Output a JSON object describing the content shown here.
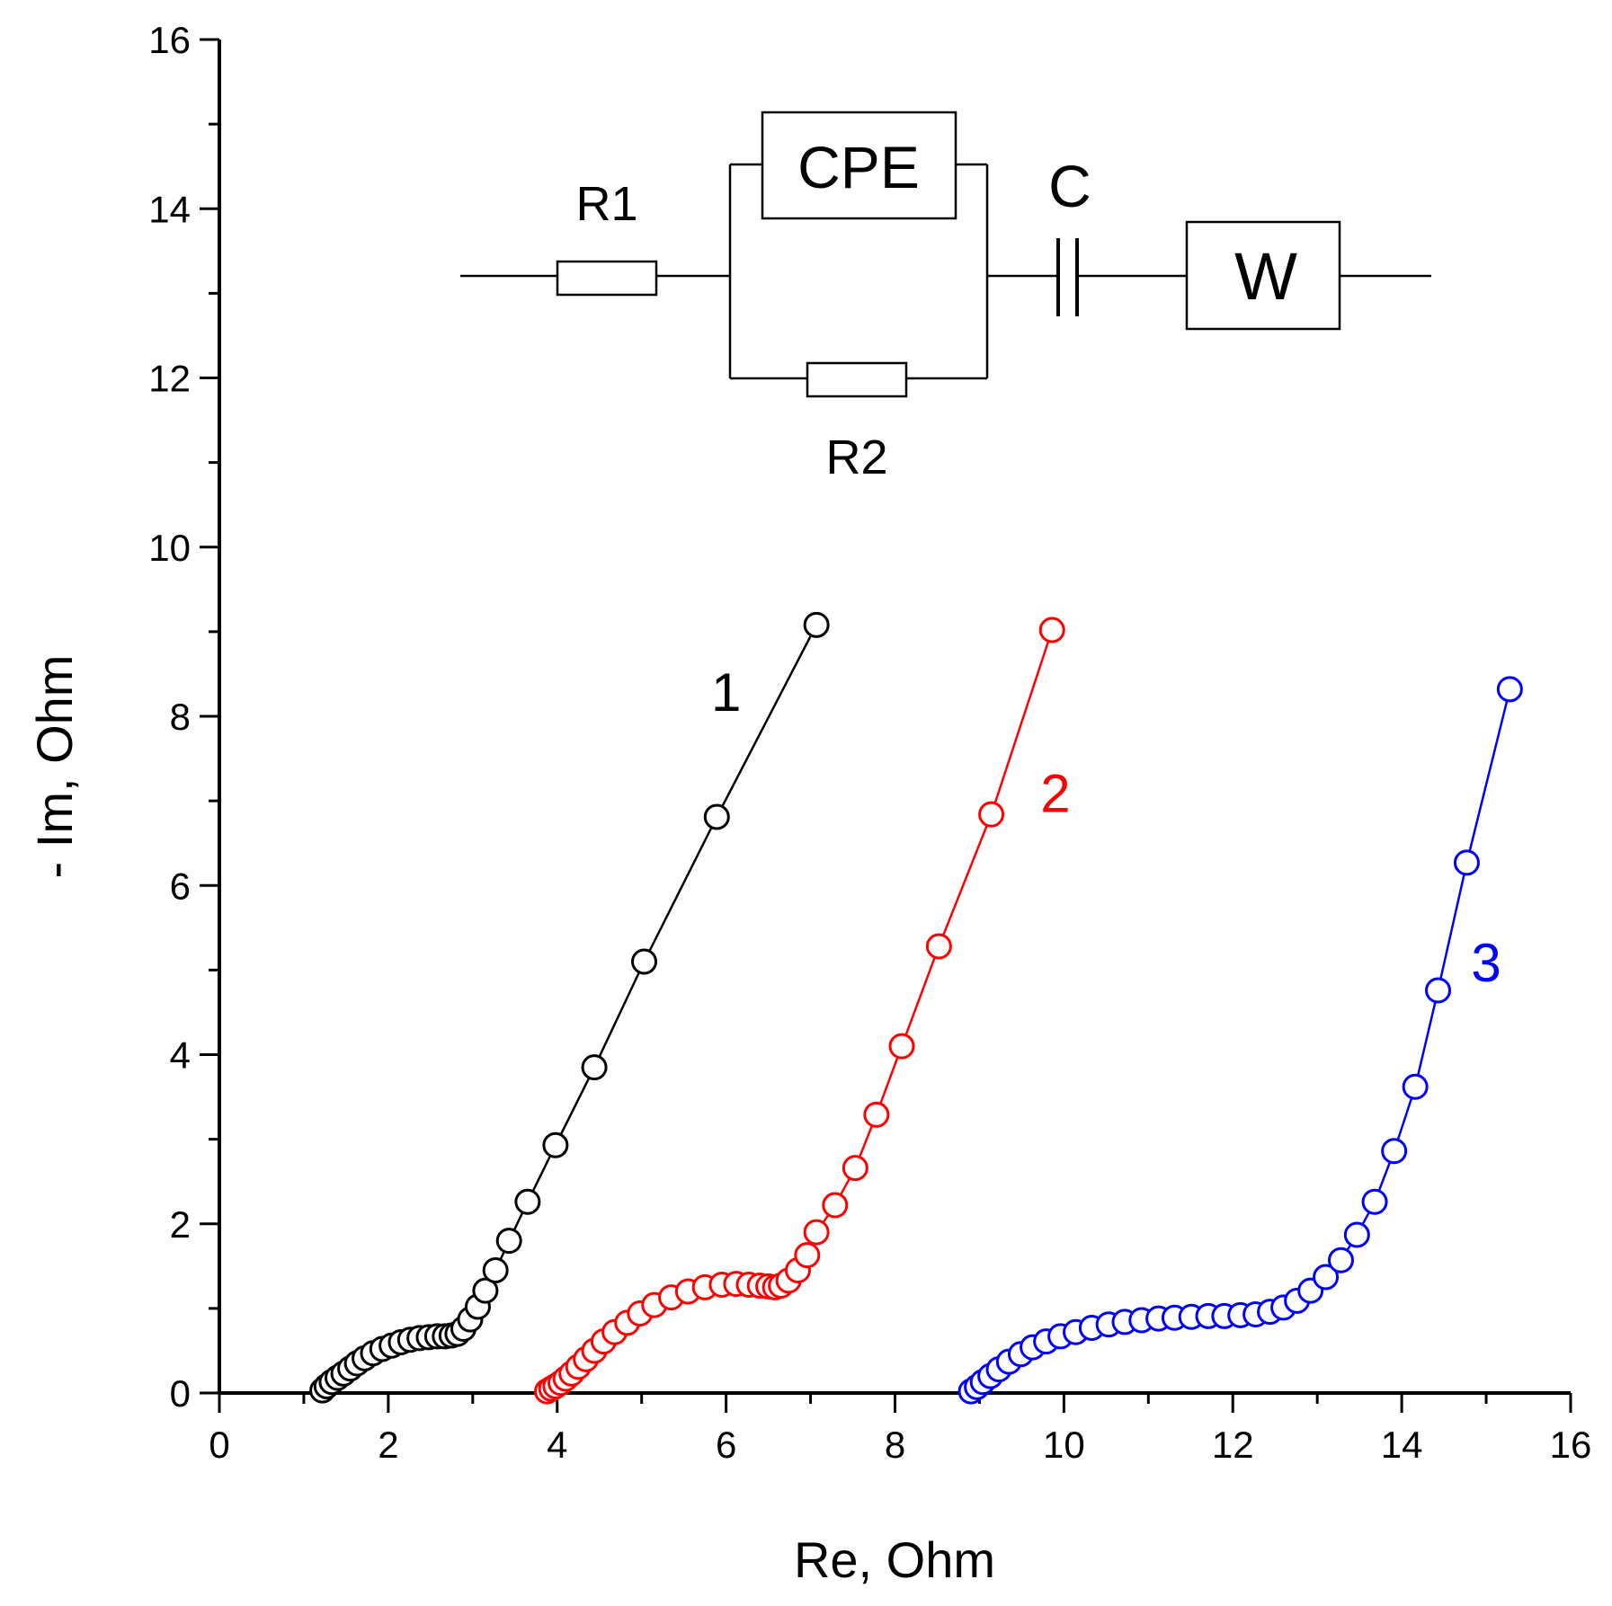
{
  "chart_data": {
    "type": "scatter",
    "title": "",
    "xlabel": "Re, Ohm",
    "ylabel": "- Im, Ohm",
    "xlim": [
      0,
      16
    ],
    "ylim": [
      0,
      16
    ],
    "x_ticks": [
      0,
      2,
      4,
      6,
      8,
      10,
      12,
      14,
      16
    ],
    "y_ticks": [
      0,
      2,
      4,
      6,
      8,
      10,
      12,
      14,
      16
    ],
    "x_tick_labels": [
      "0",
      "2",
      "4",
      "6",
      "8",
      "10",
      "12",
      "14",
      "16"
    ],
    "y_tick_labels": [
      "0",
      "2",
      "4",
      "6",
      "8",
      "10",
      "12",
      "14",
      "16"
    ],
    "grid": false,
    "marker": "open-circle",
    "series": [
      {
        "name": "1",
        "label": "1",
        "color": "#000000",
        "points": [
          [
            1.22,
            0.03
          ],
          [
            1.27,
            0.08
          ],
          [
            1.33,
            0.13
          ],
          [
            1.4,
            0.18
          ],
          [
            1.47,
            0.23
          ],
          [
            1.55,
            0.29
          ],
          [
            1.63,
            0.35
          ],
          [
            1.72,
            0.41
          ],
          [
            1.82,
            0.47
          ],
          [
            1.93,
            0.52
          ],
          [
            2.04,
            0.56
          ],
          [
            2.15,
            0.6
          ],
          [
            2.26,
            0.63
          ],
          [
            2.37,
            0.65
          ],
          [
            2.48,
            0.66
          ],
          [
            2.58,
            0.67
          ],
          [
            2.67,
            0.67
          ],
          [
            2.75,
            0.68
          ],
          [
            2.82,
            0.7
          ],
          [
            2.89,
            0.76
          ],
          [
            2.97,
            0.87
          ],
          [
            3.06,
            1.02
          ],
          [
            3.15,
            1.21
          ],
          [
            3.27,
            1.45
          ],
          [
            3.43,
            1.8
          ],
          [
            3.65,
            2.26
          ],
          [
            3.98,
            2.93
          ],
          [
            4.44,
            3.85
          ],
          [
            5.03,
            5.1
          ],
          [
            5.89,
            6.81
          ],
          [
            7.07,
            9.08
          ]
        ]
      },
      {
        "name": "2",
        "label": "2",
        "color": "#ff0000",
        "points": [
          [
            3.88,
            0.02
          ],
          [
            3.93,
            0.05
          ],
          [
            3.98,
            0.08
          ],
          [
            4.04,
            0.12
          ],
          [
            4.1,
            0.17
          ],
          [
            4.17,
            0.23
          ],
          [
            4.25,
            0.31
          ],
          [
            4.34,
            0.4
          ],
          [
            4.44,
            0.5
          ],
          [
            4.55,
            0.61
          ],
          [
            4.68,
            0.72
          ],
          [
            4.83,
            0.83
          ],
          [
            4.98,
            0.94
          ],
          [
            5.15,
            1.04
          ],
          [
            5.35,
            1.13
          ],
          [
            5.55,
            1.2
          ],
          [
            5.75,
            1.25
          ],
          [
            5.95,
            1.28
          ],
          [
            6.12,
            1.29
          ],
          [
            6.27,
            1.28
          ],
          [
            6.4,
            1.27
          ],
          [
            6.5,
            1.26
          ],
          [
            6.58,
            1.25
          ],
          [
            6.65,
            1.27
          ],
          [
            6.74,
            1.33
          ],
          [
            6.85,
            1.45
          ],
          [
            6.96,
            1.63
          ],
          [
            7.07,
            1.9
          ],
          [
            7.29,
            2.22
          ],
          [
            7.53,
            2.66
          ],
          [
            7.78,
            3.29
          ],
          [
            8.08,
            4.1
          ],
          [
            8.52,
            5.28
          ],
          [
            9.14,
            6.84
          ],
          [
            9.86,
            9.02
          ]
        ]
      },
      {
        "name": "3",
        "label": "3",
        "color": "#0000ff",
        "points": [
          [
            8.9,
            0.02
          ],
          [
            8.97,
            0.07
          ],
          [
            9.04,
            0.13
          ],
          [
            9.13,
            0.2
          ],
          [
            9.23,
            0.28
          ],
          [
            9.35,
            0.37
          ],
          [
            9.49,
            0.46
          ],
          [
            9.63,
            0.54
          ],
          [
            9.79,
            0.61
          ],
          [
            9.96,
            0.67
          ],
          [
            10.14,
            0.72
          ],
          [
            10.33,
            0.77
          ],
          [
            10.53,
            0.81
          ],
          [
            10.72,
            0.84
          ],
          [
            10.92,
            0.86
          ],
          [
            11.12,
            0.88
          ],
          [
            11.31,
            0.89
          ],
          [
            11.51,
            0.9
          ],
          [
            11.71,
            0.91
          ],
          [
            11.9,
            0.91
          ],
          [
            12.09,
            0.92
          ],
          [
            12.27,
            0.93
          ],
          [
            12.44,
            0.96
          ],
          [
            12.6,
            1.01
          ],
          [
            12.76,
            1.09
          ],
          [
            12.92,
            1.21
          ],
          [
            13.1,
            1.37
          ],
          [
            13.28,
            1.57
          ],
          [
            13.47,
            1.87
          ],
          [
            13.68,
            2.26
          ],
          [
            13.91,
            2.86
          ],
          [
            14.16,
            3.62
          ],
          [
            14.43,
            4.76
          ],
          [
            14.77,
            6.27
          ],
          [
            15.28,
            8.32
          ]
        ]
      }
    ],
    "annotations": [
      {
        "text": "1",
        "x": 6.0,
        "y": 8.3
      },
      {
        "text": "2",
        "x": 9.9,
        "y": 7.1
      },
      {
        "text": "3",
        "x": 15.0,
        "y": 5.1
      }
    ]
  },
  "circuit": {
    "r1_label": "R1",
    "cpe_label": "CPE",
    "r2_label": "R2",
    "c_label": "C",
    "w_label": "W"
  }
}
